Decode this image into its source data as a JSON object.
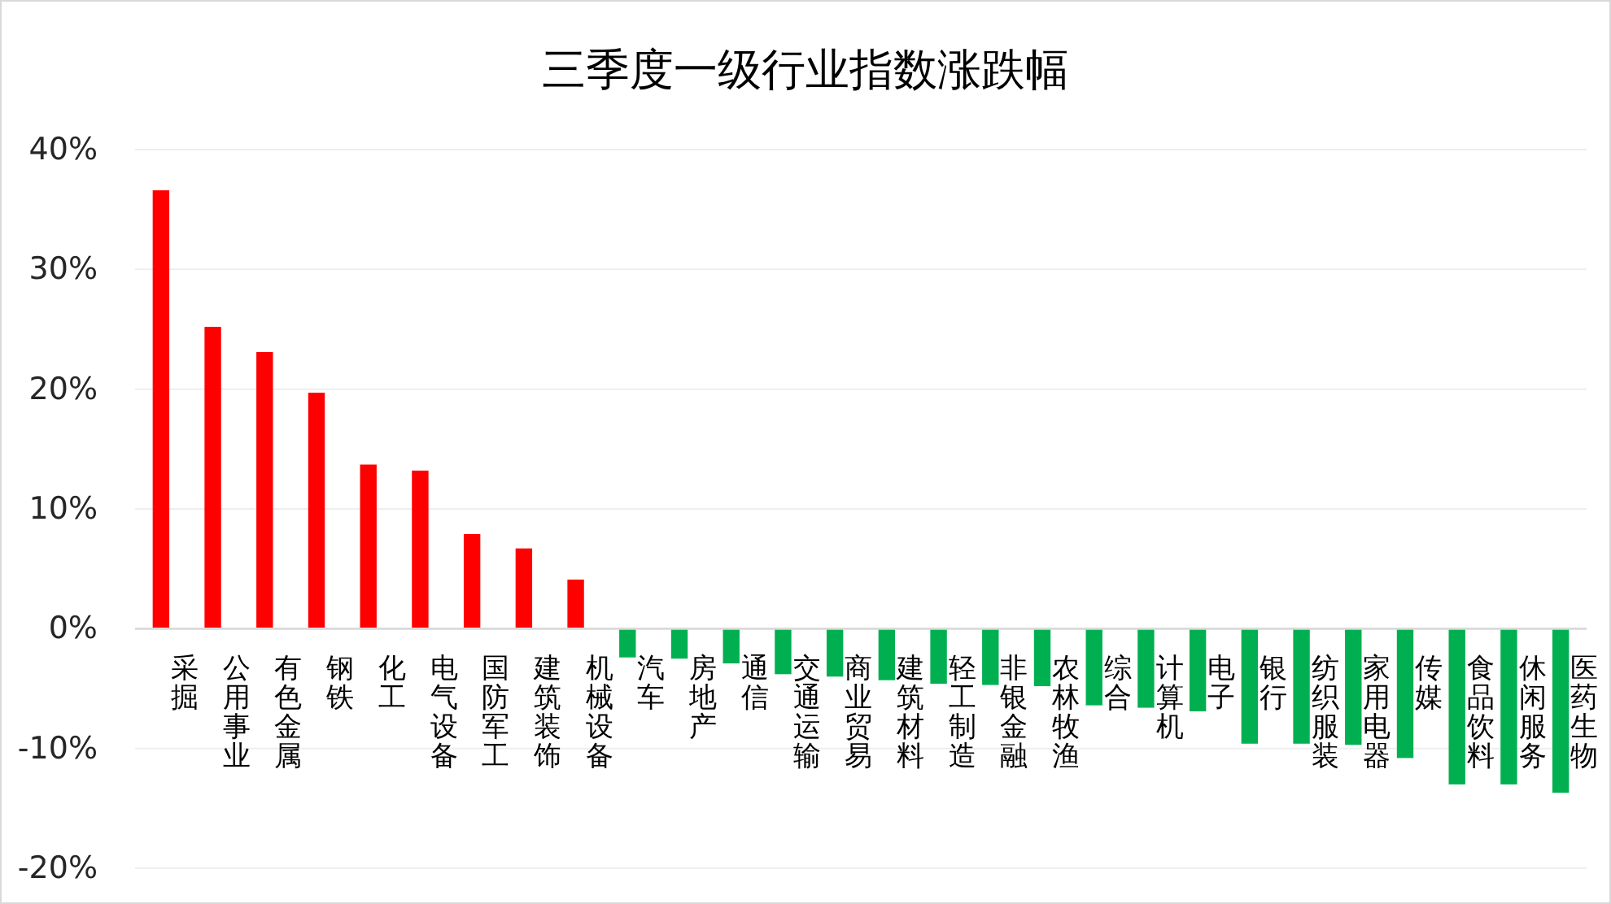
{
  "chart_data": {
    "type": "bar",
    "title": "三季度一级行业指数涨跌幅",
    "categories": [
      "采掘",
      "公用事业",
      "有色金属",
      "钢铁",
      "化工",
      "电气设备",
      "国防军工",
      "建筑装饰",
      "机械设备",
      "汽车",
      "房地产",
      "通信",
      "交通运输",
      "商业贸易",
      "建筑材料",
      "轻工制造",
      "非银金融",
      "农林牧渔",
      "综合",
      "计算机",
      "电子",
      "银行",
      "纺织服装",
      "家用电器",
      "传媒",
      "食品饮料",
      "休闲服务",
      "医药生物"
    ],
    "values": [
      36.6,
      25.2,
      23.1,
      19.7,
      13.7,
      13.2,
      7.9,
      6.7,
      4.1,
      -2.4,
      -2.5,
      -2.9,
      -3.8,
      -4.0,
      -4.3,
      -4.6,
      -4.7,
      -4.8,
      -6.4,
      -6.6,
      -6.9,
      -9.6,
      -9.6,
      -9.7,
      -10.8,
      -13.0,
      -13.0,
      -13.7
    ],
    "colors": [
      "#ff0000",
      "#ff0000",
      "#ff0000",
      "#ff0000",
      "#ff0000",
      "#ff0000",
      "#ff0000",
      "#ff0000",
      "#ff0000",
      "#00b050",
      "#00b050",
      "#00b050",
      "#00b050",
      "#00b050",
      "#00b050",
      "#00b050",
      "#00b050",
      "#00b050",
      "#00b050",
      "#00b050",
      "#00b050",
      "#00b050",
      "#00b050",
      "#00b050",
      "#00b050",
      "#00b050",
      "#00b050",
      "#00b050"
    ],
    "ylim": [
      -20,
      40
    ],
    "yticks": [
      {
        "value": -20,
        "label": "-20%"
      },
      {
        "value": -10,
        "label": "-10%"
      },
      {
        "value": 0,
        "label": "0%"
      },
      {
        "value": 10,
        "label": "10%"
      },
      {
        "value": 20,
        "label": "20%"
      },
      {
        "value": 30,
        "label": "30%"
      },
      {
        "value": 40,
        "label": "40%"
      }
    ],
    "grid": "y"
  }
}
